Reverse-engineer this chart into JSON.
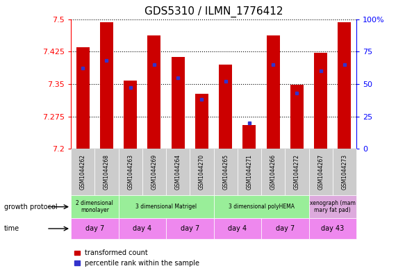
{
  "title": "GDS5310 / ILMN_1776412",
  "samples": [
    "GSM1044262",
    "GSM1044268",
    "GSM1044263",
    "GSM1044269",
    "GSM1044264",
    "GSM1044270",
    "GSM1044265",
    "GSM1044271",
    "GSM1044266",
    "GSM1044272",
    "GSM1044267",
    "GSM1044273"
  ],
  "transformed_counts": [
    7.435,
    7.492,
    7.358,
    7.462,
    7.413,
    7.328,
    7.395,
    7.255,
    7.462,
    7.348,
    7.422,
    7.492
  ],
  "percentile_ranks": [
    62,
    68,
    47,
    65,
    55,
    38,
    52,
    20,
    65,
    43,
    60,
    65
  ],
  "y_min": 7.2,
  "y_max": 7.5,
  "y_ticks": [
    7.2,
    7.275,
    7.35,
    7.425,
    7.5
  ],
  "y_tick_labels": [
    "7.2",
    "7.275",
    "7.35",
    "7.425",
    "7.5"
  ],
  "right_y_ticks": [
    0,
    25,
    50,
    75,
    100
  ],
  "right_y_labels": [
    "0",
    "25",
    "50",
    "75",
    "100%"
  ],
  "bar_color": "#cc0000",
  "blue_color": "#3333cc",
  "growth_protocol_groups": [
    {
      "label": "2 dimensional\nmonolayer",
      "start": 0,
      "end": 2
    },
    {
      "label": "3 dimensional Matrigel",
      "start": 2,
      "end": 6
    },
    {
      "label": "3 dimensional polyHEMA",
      "start": 6,
      "end": 10
    },
    {
      "label": "xenograph (mam\nmary fat pad)",
      "start": 10,
      "end": 12
    }
  ],
  "time_groups": [
    {
      "label": "day 7",
      "start": 0,
      "end": 2
    },
    {
      "label": "day 4",
      "start": 2,
      "end": 4
    },
    {
      "label": "day 7",
      "start": 4,
      "end": 6
    },
    {
      "label": "day 4",
      "start": 6,
      "end": 8
    },
    {
      "label": "day 7",
      "start": 8,
      "end": 10
    },
    {
      "label": "day 43",
      "start": 10,
      "end": 12
    }
  ],
  "gp_green_color": "#99ee99",
  "gp_pink_color": "#ddaadd",
  "time_color": "#ee88ee",
  "sample_bg_color": "#cccccc",
  "left_label_growth": "growth protocol",
  "left_label_time": "time",
  "legend_red_label": "transformed count",
  "legend_blue_label": "percentile rank within the sample"
}
